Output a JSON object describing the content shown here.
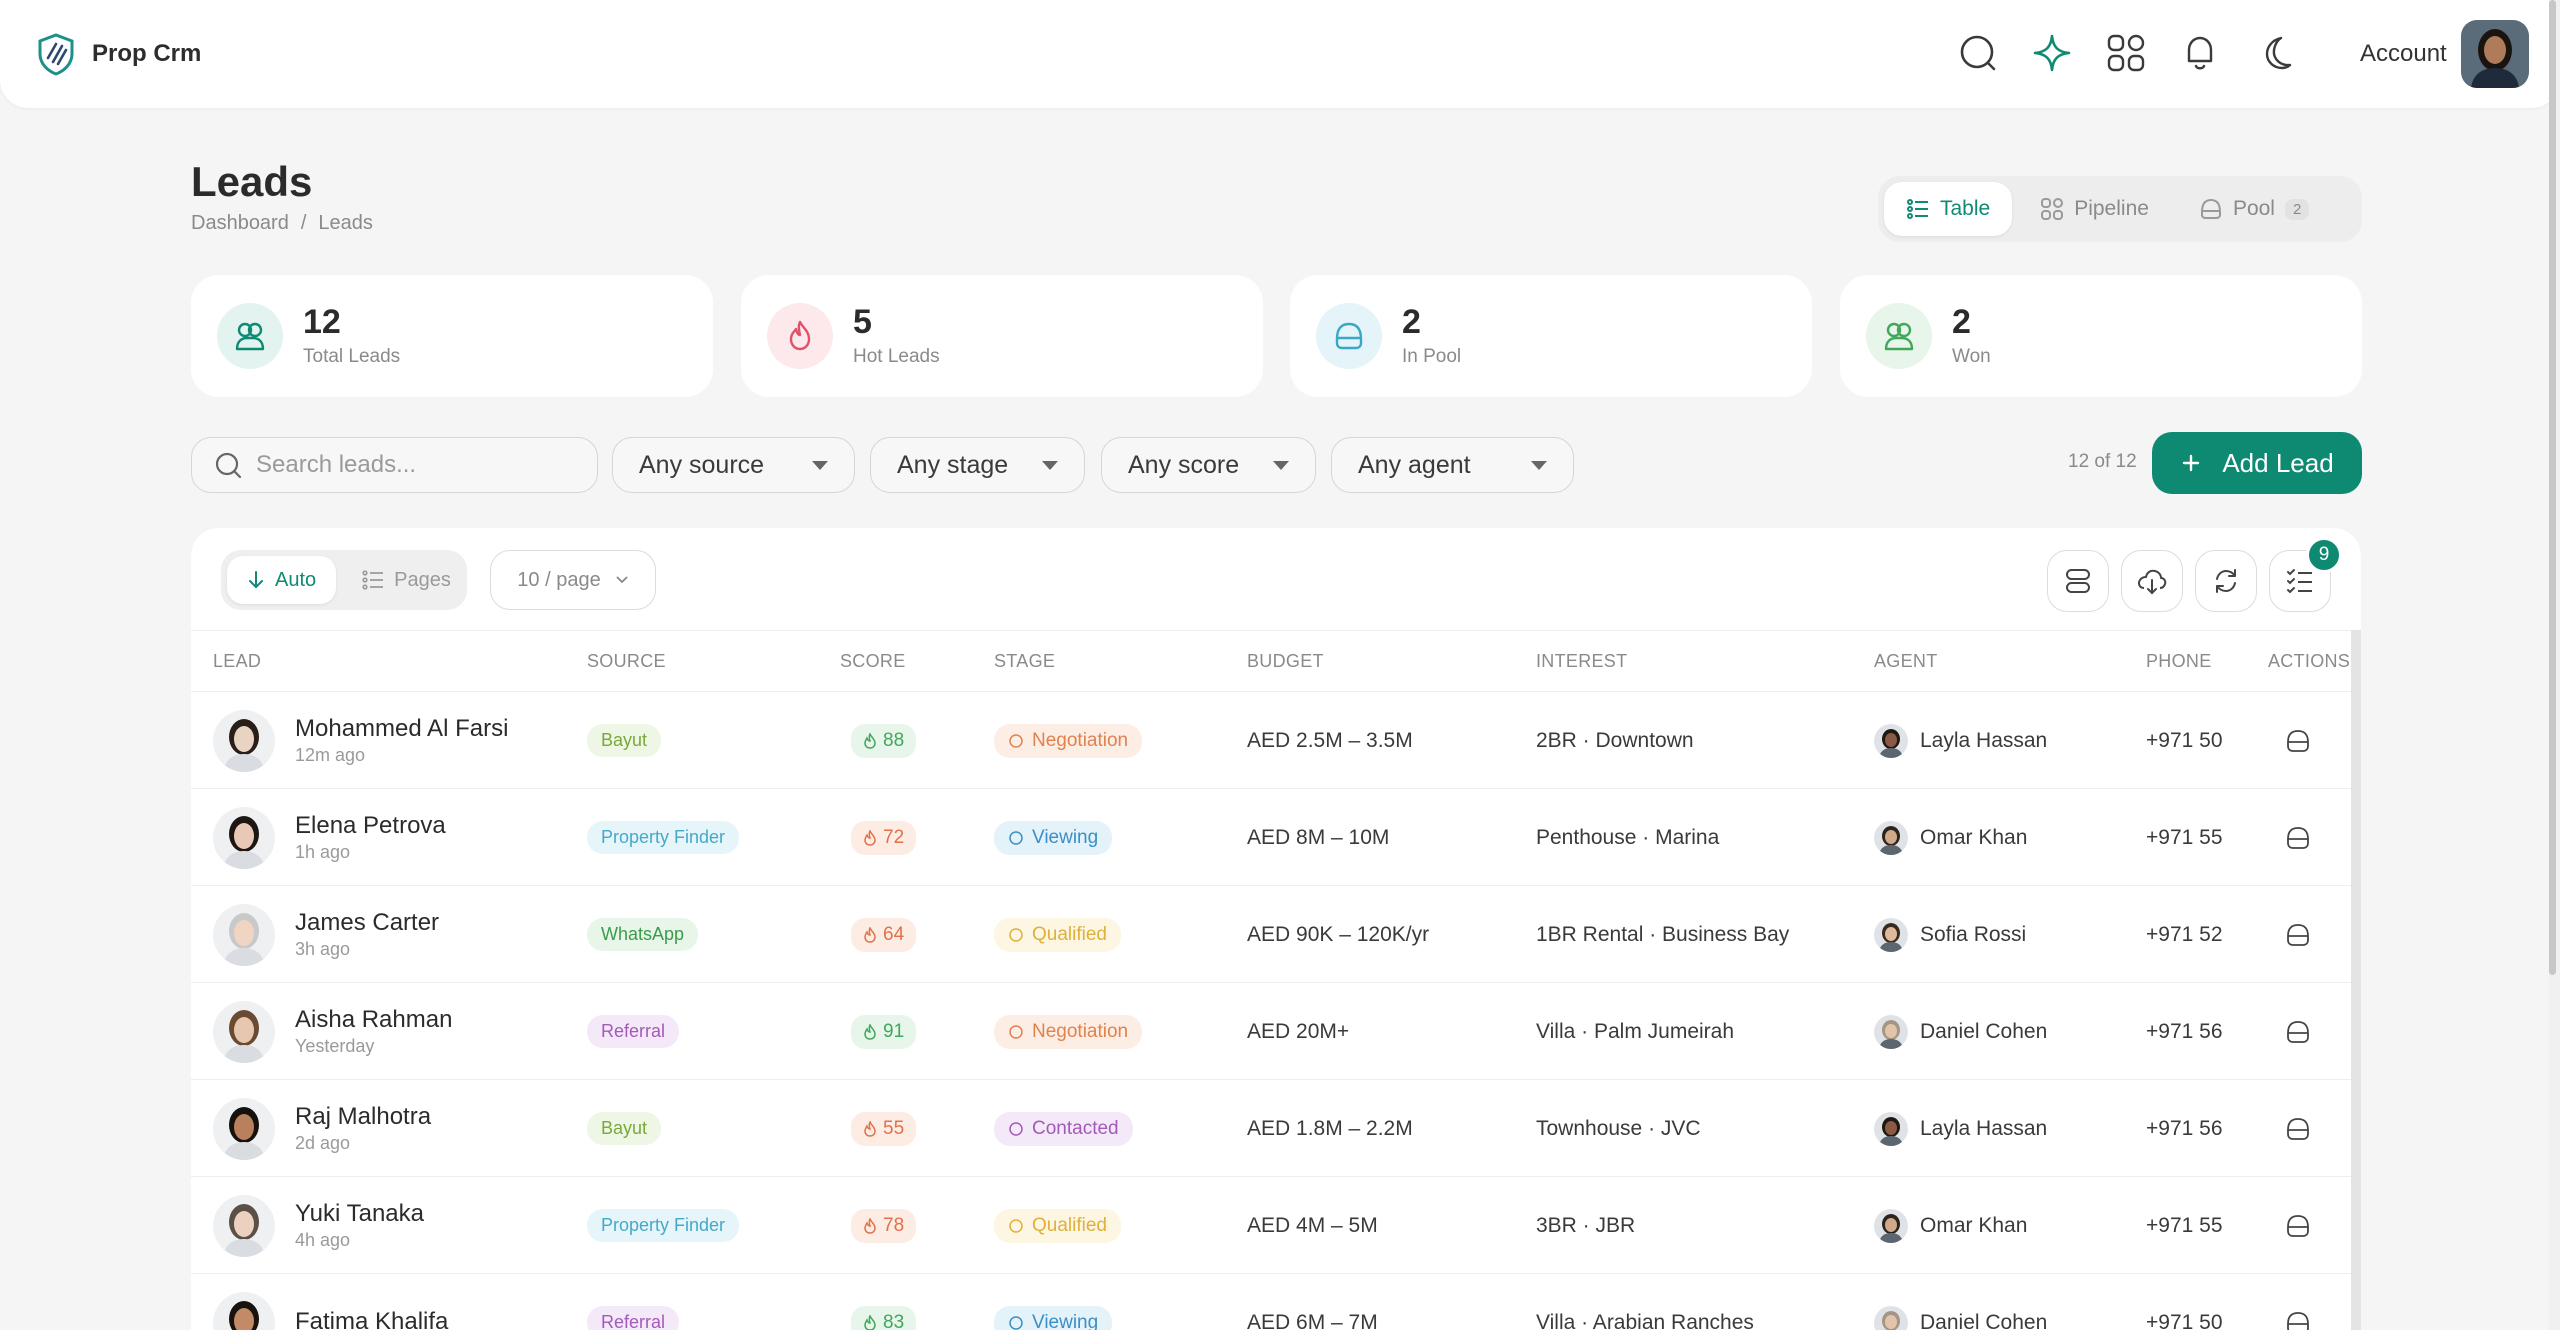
{
  "brand": {
    "name": "Prop Crm"
  },
  "header_icons": [
    "search-icon",
    "sparkle-icon",
    "apps-grid-icon",
    "bell-icon",
    "moon-icon"
  ],
  "account": {
    "label": "Account"
  },
  "page": {
    "title": "Leads",
    "breadcrumb": [
      "Dashboard",
      "/",
      "Leads"
    ]
  },
  "views": {
    "table": "Table",
    "pipeline": "Pipeline",
    "pool": "Pool",
    "pool_count": "2"
  },
  "stats": [
    {
      "value": "12",
      "label": "Total Leads",
      "color": "#0e8a73"
    },
    {
      "value": "5",
      "label": "Hot Leads",
      "color": "#e0526a"
    },
    {
      "value": "2",
      "label": "In Pool",
      "color": "#3aa7c7"
    },
    {
      "value": "2",
      "label": "Won",
      "color": "#3fa85a"
    }
  ],
  "filters": {
    "search_placeholder": "Search leads...",
    "source": "Any source",
    "stage": "Any stage",
    "score": "Any score",
    "agent": "Any agent",
    "count": "12 of 12",
    "add_label": "Add Lead"
  },
  "table_tools": {
    "auto": "Auto",
    "pages": "Pages",
    "page_size": "10 / page",
    "task_badge": "9"
  },
  "columns": [
    "LEAD",
    "SOURCE",
    "SCORE",
    "STAGE",
    "BUDGET",
    "INTEREST",
    "AGENT",
    "PHONE",
    "ACTIONS"
  ],
  "rows": [
    {
      "name": "Mohammed Al Farsi",
      "time": "12m ago",
      "source": "Bayut",
      "score": "88",
      "stage": "Negotiation",
      "budget": "AED 2.5M – 3.5M",
      "interest": "2BR · Downtown",
      "agent": "Layla Hassan",
      "phone": "+971 50"
    },
    {
      "name": "Elena Petrova",
      "time": "1h ago",
      "source": "Property Finder",
      "score": "72",
      "stage": "Viewing",
      "budget": "AED 8M – 10M",
      "interest": "Penthouse · Marina",
      "agent": "Omar Khan",
      "phone": "+971 55"
    },
    {
      "name": "James Carter",
      "time": "3h ago",
      "source": "WhatsApp",
      "score": "64",
      "stage": "Qualified",
      "budget": "AED 90K – 120K/yr",
      "interest": "1BR Rental · Business Bay",
      "agent": "Sofia Rossi",
      "phone": "+971 52"
    },
    {
      "name": "Aisha Rahman",
      "time": "Yesterday",
      "source": "Referral",
      "score": "91",
      "stage": "Negotiation",
      "budget": "AED 20M+",
      "interest": "Villa · Palm Jumeirah",
      "agent": "Daniel Cohen",
      "phone": "+971 56"
    },
    {
      "name": "Raj Malhotra",
      "time": "2d ago",
      "source": "Bayut",
      "score": "55",
      "stage": "Contacted",
      "budget": "AED 1.8M – 2.2M",
      "interest": "Townhouse · JVC",
      "agent": "Layla Hassan",
      "phone": "+971 56"
    },
    {
      "name": "Yuki Tanaka",
      "time": "4h ago",
      "source": "Property Finder",
      "score": "78",
      "stage": "Qualified",
      "budget": "AED 4M – 5M",
      "interest": "3BR · JBR",
      "agent": "Omar Khan",
      "phone": "+971 55"
    },
    {
      "name": "Fatima Khalifa",
      "time": "",
      "source": "Referral",
      "score": "83",
      "stage": "Viewing",
      "budget": "AED 6M – 7M",
      "interest": "Villa · Arabian Ranches",
      "agent": "Daniel Cohen",
      "phone": "+971 50"
    }
  ]
}
